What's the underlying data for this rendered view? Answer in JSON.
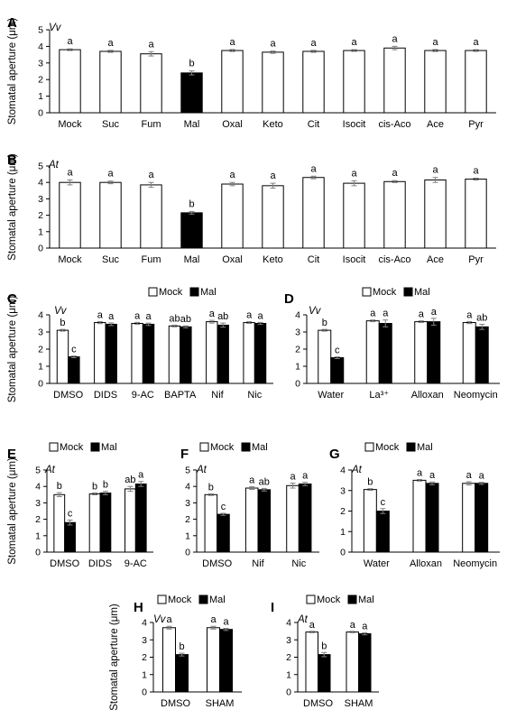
{
  "y_axis_label": "Stomatal aperture (μm)",
  "colors": {
    "mock": "#ffffff",
    "mal": "#000000",
    "outline": "#000000",
    "error": "#808080"
  },
  "chart_data": [
    {
      "panel": "A",
      "species": "Vv",
      "type": "bar",
      "ylim": [
        0,
        5
      ],
      "yticks": [
        0,
        1,
        2,
        3,
        4,
        5
      ],
      "ylabel": "Stomatal aperture (μm)",
      "categories": [
        "Mock",
        "Suc",
        "Fum",
        "Mal",
        "Oxal",
        "Keto",
        "Cit",
        "Isocit",
        "cis-Aco",
        "Ace",
        "Pyr"
      ],
      "series": [
        {
          "values": [
            3.8,
            3.7,
            3.55,
            2.4,
            3.75,
            3.65,
            3.7,
            3.75,
            3.9,
            3.75,
            3.75
          ],
          "errors": [
            0.05,
            0.06,
            0.13,
            0.12,
            0.06,
            0.07,
            0.06,
            0.05,
            0.1,
            0.06,
            0.05
          ],
          "fills": [
            "mock",
            "mock",
            "mock",
            "mal",
            "mock",
            "mock",
            "mock",
            "mock",
            "mock",
            "mock",
            "mock"
          ],
          "sig": [
            [
              "a"
            ],
            [
              "a"
            ],
            [
              "a"
            ],
            [
              "b"
            ],
            [
              "a"
            ],
            [
              "a"
            ],
            [
              "a"
            ],
            [
              "a"
            ],
            [
              "a"
            ],
            [
              "a"
            ],
            [
              "a"
            ]
          ]
        }
      ]
    },
    {
      "panel": "B",
      "species": "At",
      "type": "bar",
      "ylim": [
        0,
        5
      ],
      "yticks": [
        0,
        1,
        2,
        3,
        4,
        5
      ],
      "ylabel": "Stomatal aperture (μm)",
      "categories": [
        "Mock",
        "Suc",
        "Fum",
        "Mal",
        "Oxal",
        "Keto",
        "Cit",
        "Isocit",
        "cis-Aco",
        "Ace",
        "Pyr"
      ],
      "series": [
        {
          "values": [
            4.0,
            4.0,
            3.85,
            2.15,
            3.9,
            3.8,
            4.3,
            3.95,
            4.05,
            4.15,
            4.2
          ],
          "errors": [
            0.15,
            0.08,
            0.15,
            0.08,
            0.1,
            0.15,
            0.08,
            0.15,
            0.06,
            0.15,
            0.06
          ],
          "fills": [
            "mock",
            "mock",
            "mock",
            "mal",
            "mock",
            "mock",
            "mock",
            "mock",
            "mock",
            "mock",
            "mock"
          ],
          "sig": [
            [
              "a"
            ],
            [
              "a"
            ],
            [
              "a"
            ],
            [
              "b"
            ],
            [
              "a"
            ],
            [
              "a"
            ],
            [
              "a"
            ],
            [
              "a"
            ],
            [
              "a"
            ],
            [
              "a"
            ],
            [
              "a"
            ]
          ]
        }
      ]
    },
    {
      "panel": "C",
      "species": "Vv",
      "type": "bar",
      "ylim": [
        0,
        4
      ],
      "yticks": [
        0,
        1,
        2,
        3,
        4
      ],
      "ylabel": "Stomatal aperture (μm)",
      "legend": [
        "Mock",
        "Mal"
      ],
      "categories": [
        "DMSO",
        "DIDS",
        "9-AC",
        "BAPTA",
        "Nif",
        "Nic"
      ],
      "series": [
        {
          "name": "Mock",
          "values": [
            3.1,
            3.55,
            3.5,
            3.35,
            3.6,
            3.55
          ],
          "errors": [
            0.05,
            0.06,
            0.06,
            0.05,
            0.08,
            0.05
          ],
          "sig": [
            "b",
            "a",
            "a",
            "ab",
            "a",
            "a"
          ]
        },
        {
          "name": "Mal",
          "values": [
            1.55,
            3.45,
            3.45,
            3.3,
            3.4,
            3.5
          ],
          "errors": [
            0.05,
            0.08,
            0.07,
            0.06,
            0.12,
            0.06
          ],
          "sig": [
            "c",
            "a",
            "a",
            "ab",
            "ab",
            "a"
          ]
        }
      ]
    },
    {
      "panel": "D",
      "species": "Vv",
      "type": "bar",
      "ylim": [
        0,
        4
      ],
      "yticks": [
        0,
        1,
        2,
        3,
        4
      ],
      "ylabel": "",
      "legend": [
        "Mock",
        "Mal"
      ],
      "categories": [
        "Water",
        "La³⁺",
        "Alloxan",
        "Neomycin"
      ],
      "series": [
        {
          "name": "Mock",
          "values": [
            3.1,
            3.65,
            3.6,
            3.55
          ],
          "errors": [
            0.05,
            0.05,
            0.05,
            0.06
          ],
          "sig": [
            "b",
            "a",
            "a",
            "a"
          ]
        },
        {
          "name": "Mal",
          "values": [
            1.5,
            3.5,
            3.6,
            3.3
          ],
          "errors": [
            0.05,
            0.2,
            0.2,
            0.15
          ],
          "sig": [
            "c",
            "a",
            "a",
            "ab"
          ]
        }
      ]
    },
    {
      "panel": "E",
      "species": "At",
      "type": "bar",
      "ylim": [
        0,
        5
      ],
      "yticks": [
        0,
        1,
        2,
        3,
        4,
        5
      ],
      "ylabel": "Stomatal aperture (μm)",
      "legend": [
        "Mock",
        "Mal"
      ],
      "categories": [
        "DMSO",
        "DIDS",
        "9-AC"
      ],
      "series": [
        {
          "name": "Mock",
          "values": [
            3.5,
            3.55,
            3.85
          ],
          "errors": [
            0.12,
            0.06,
            0.15
          ],
          "sig": [
            "b",
            "b",
            "ab"
          ]
        },
        {
          "name": "Mal",
          "values": [
            1.8,
            3.6,
            4.15
          ],
          "errors": [
            0.15,
            0.1,
            0.15
          ],
          "sig": [
            "c",
            "b",
            "a"
          ]
        }
      ]
    },
    {
      "panel": "F",
      "species": "At",
      "type": "bar",
      "ylim": [
        0,
        5
      ],
      "yticks": [
        0,
        1,
        2,
        3,
        4,
        5
      ],
      "ylabel": "",
      "legend": [
        "Mock",
        "Mal"
      ],
      "categories": [
        "DMSO",
        "Nif",
        "Nic"
      ],
      "series": [
        {
          "name": "Mock",
          "values": [
            3.5,
            3.9,
            4.05
          ],
          "errors": [
            0.05,
            0.08,
            0.15
          ],
          "sig": [
            "b",
            "a",
            "a"
          ]
        },
        {
          "name": "Mal",
          "values": [
            2.3,
            3.8,
            4.15
          ],
          "errors": [
            0.06,
            0.08,
            0.1
          ],
          "sig": [
            "c",
            "ab",
            "a"
          ]
        }
      ]
    },
    {
      "panel": "G",
      "species": "At",
      "type": "bar",
      "ylim": [
        0,
        4
      ],
      "yticks": [
        0,
        1,
        2,
        3,
        4
      ],
      "ylabel": "",
      "legend": [
        "Mock",
        "Mal"
      ],
      "categories": [
        "Water",
        "Alloxan",
        "Neomycin"
      ],
      "series": [
        {
          "name": "Mock",
          "values": [
            3.05,
            3.5,
            3.35
          ],
          "errors": [
            0.04,
            0.04,
            0.08
          ],
          "sig": [
            "b",
            "a",
            "a"
          ]
        },
        {
          "name": "Mal",
          "values": [
            2.0,
            3.35,
            3.35
          ],
          "errors": [
            0.12,
            0.07,
            0.05
          ],
          "sig": [
            "c",
            "a",
            "a"
          ]
        }
      ]
    },
    {
      "panel": "H",
      "species": "Vv",
      "type": "bar",
      "ylim": [
        0,
        4
      ],
      "yticks": [
        0,
        1,
        2,
        3,
        4
      ],
      "ylabel": "Stomatal aperture (μm)",
      "legend": [
        "Mock",
        "Mal"
      ],
      "categories": [
        "DMSO",
        "SHAM"
      ],
      "series": [
        {
          "name": "Mock",
          "values": [
            3.7,
            3.7
          ],
          "errors": [
            0.08,
            0.08
          ],
          "sig": [
            "a",
            "a"
          ]
        },
        {
          "name": "Mal",
          "values": [
            2.15,
            3.6
          ],
          "errors": [
            0.08,
            0.06
          ],
          "sig": [
            "b",
            "a"
          ]
        }
      ]
    },
    {
      "panel": "I",
      "species": "At",
      "type": "bar",
      "ylim": [
        0,
        4
      ],
      "yticks": [
        0,
        1,
        2,
        3,
        4
      ],
      "ylabel": "",
      "legend": [
        "Mock",
        "Mal"
      ],
      "categories": [
        "DMSO",
        "SHAM"
      ],
      "series": [
        {
          "name": "Mock",
          "values": [
            3.45,
            3.45
          ],
          "errors": [
            0.04,
            0.04
          ],
          "sig": [
            "a",
            "a"
          ]
        },
        {
          "name": "Mal",
          "values": [
            2.15,
            3.35
          ],
          "errors": [
            0.12,
            0.06
          ],
          "sig": [
            "b",
            "a"
          ]
        }
      ]
    }
  ]
}
